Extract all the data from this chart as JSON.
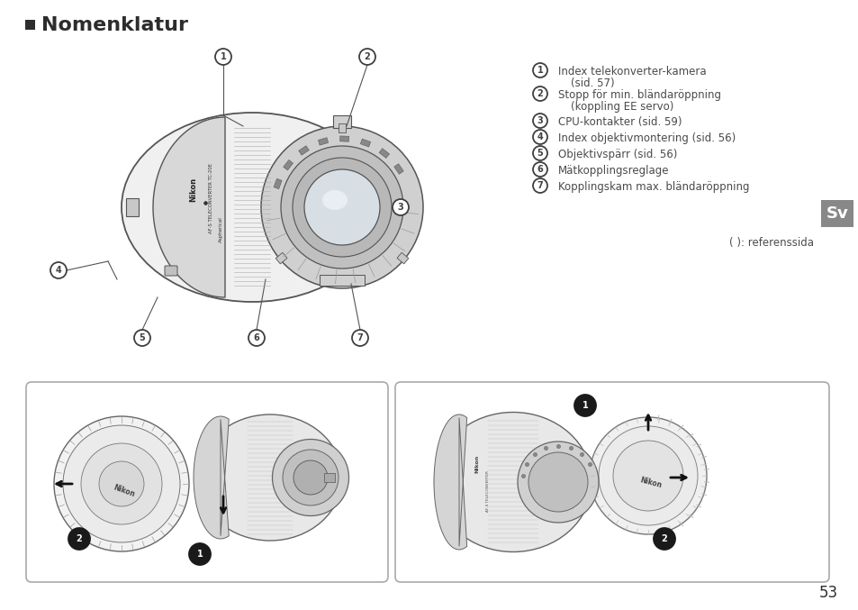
{
  "title": "Nomenklatur",
  "title_square_color": "#2d2d2d",
  "bg_color": "#ffffff",
  "text_color": "#4a4a4a",
  "items": [
    {
      "num": "1",
      "text1": "Index telekonverter-kamera",
      "text2": "(sid. 57)"
    },
    {
      "num": "2",
      "text1": "Stopp för min. bländaröppning",
      "text2": "(koppling EE servo)"
    },
    {
      "num": "3",
      "text1": "CPU-kontakter (sid. 59)",
      "text2": ""
    },
    {
      "num": "4",
      "text1": "Index objektivmontering (sid. 56)",
      "text2": ""
    },
    {
      "num": "5",
      "text1": "Objektivspärr (sid. 56)",
      "text2": ""
    },
    {
      "num": "6",
      "text1": "Mätkopplingsreglage",
      "text2": ""
    },
    {
      "num": "7",
      "text1": "Kopplingskam max. bländaröppning",
      "text2": ""
    }
  ],
  "footnote": "( ): referenssida",
  "sv_label": "Sv",
  "sv_bg": "#888888",
  "page_number": "53",
  "callout_stroke": "#404040",
  "filled_fill": "#1a1a1a",
  "filled_text": "#ffffff",
  "box_border": "#aaaaaa",
  "lens_light": "#f0f0f0",
  "lens_mid": "#d8d8d8",
  "lens_dark": "#b0b0b0",
  "lens_stroke": "#555555",
  "knurl_color": "#aaaaaa",
  "arrow_color": "#111111"
}
